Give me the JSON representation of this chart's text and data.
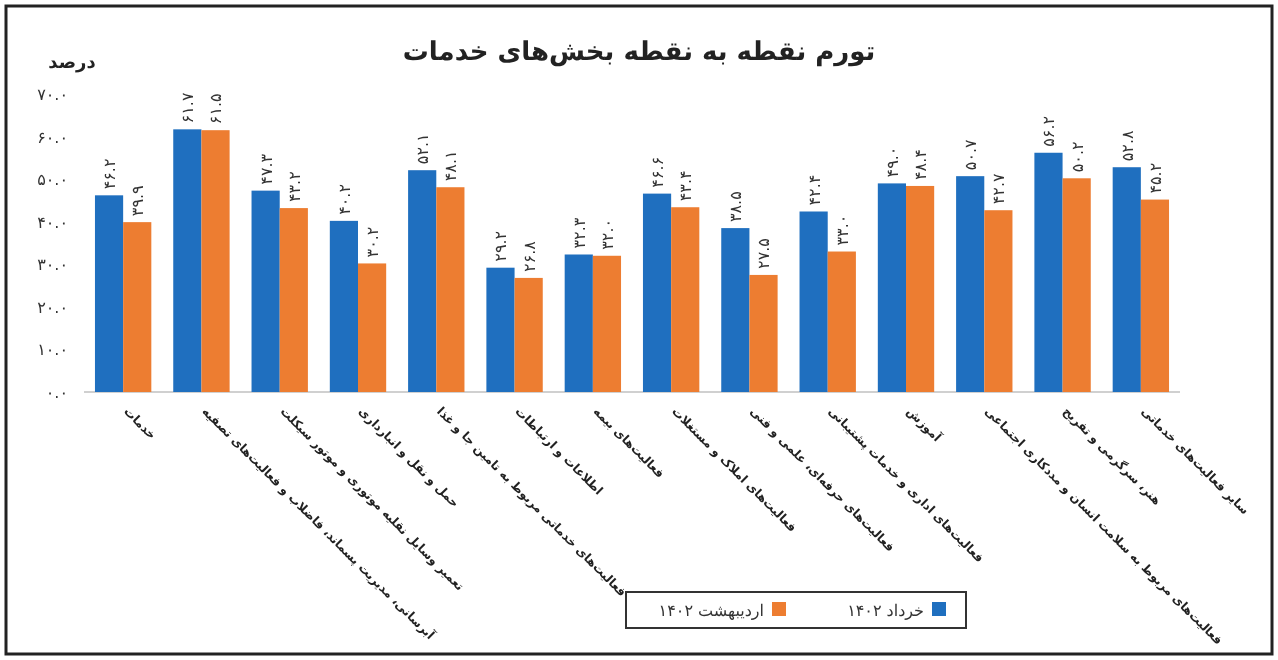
{
  "chart_data": {
    "type": "bar",
    "title": "تورم نقطه به نقطه بخش‌های خدمات",
    "ylabel": "درصد",
    "categories": [
      "خدمات",
      "آبرسانی، مدیریت پسماند، فاضلاب و فعالیت‌های تصفیه",
      "تعمیر وسایل نقلیه موتوری و موتور سیکلت",
      "حمل و نقل و انبارداری",
      "فعالیت‌های خدماتی مربوط به تامین جا و غذا",
      "اطلاعات و ارتباطات",
      "فعالیت‌های بیمه",
      "فعالیت‌های املاک و مستغلات",
      "فعالیت‌های حرفه‌ای، علمی و فنی",
      "فعالیت‌های اداری و خدمات پشتیبانی",
      "آموزش",
      "فعالیت‌های مربوط به سلامت انسان و مددکاری اجتماعی",
      "هنر، سرگرمی و تفریح",
      "سایر فعالیت‌های خدماتی"
    ],
    "series": [
      {
        "name": "خرداد ۱۴۰۲",
        "color": "#1f6fbf",
        "values": [
          46.2,
          61.7,
          47.3,
          40.2,
          52.1,
          29.2,
          32.3,
          46.6,
          38.5,
          42.4,
          49.0,
          50.7,
          56.2,
          52.8
        ],
        "value_labels": [
          "۴۶.۲",
          "۶۱.۷",
          "۴۷.۳",
          "۴۰.۲",
          "۵۲.۱",
          "۲۹.۲",
          "۳۲.۳",
          "۴۶.۶",
          "۳۸.۵",
          "۴۲.۴",
          "۴۹.۰",
          "۵۰.۷",
          "۵۶.۲",
          "۵۲.۸"
        ]
      },
      {
        "name": "اردیبهشت ۱۴۰۲",
        "color": "#ed7d31",
        "values": [
          39.9,
          61.5,
          43.2,
          30.2,
          48.1,
          26.8,
          32.0,
          43.4,
          27.5,
          33.0,
          48.4,
          42.7,
          50.2,
          45.2
        ],
        "value_labels": [
          "۳۹.۹",
          "۶۱.۵",
          "۴۳.۲",
          "۳۰.۲",
          "۴۸.۱",
          "۲۶.۸",
          "۳۲.۰",
          "۴۳.۴",
          "۲۷.۵",
          "۳۳.۰",
          "۴۸.۴",
          "۴۲.۷",
          "۵۰.۲",
          "۴۵.۲"
        ]
      }
    ],
    "ylim": [
      0,
      70
    ],
    "yticks": [
      {
        "value": 0,
        "label": "۰.۰"
      },
      {
        "value": 10,
        "label": "۱۰.۰"
      },
      {
        "value": 20,
        "label": "۲۰.۰"
      },
      {
        "value": 30,
        "label": "۳۰.۰"
      },
      {
        "value": 40,
        "label": "۴۰.۰"
      },
      {
        "value": 50,
        "label": "۵۰.۰"
      },
      {
        "value": 60,
        "label": "۶۰.۰"
      },
      {
        "value": 70,
        "label": "۷۰.۰"
      }
    ],
    "grid": false,
    "legend": "bottom"
  }
}
